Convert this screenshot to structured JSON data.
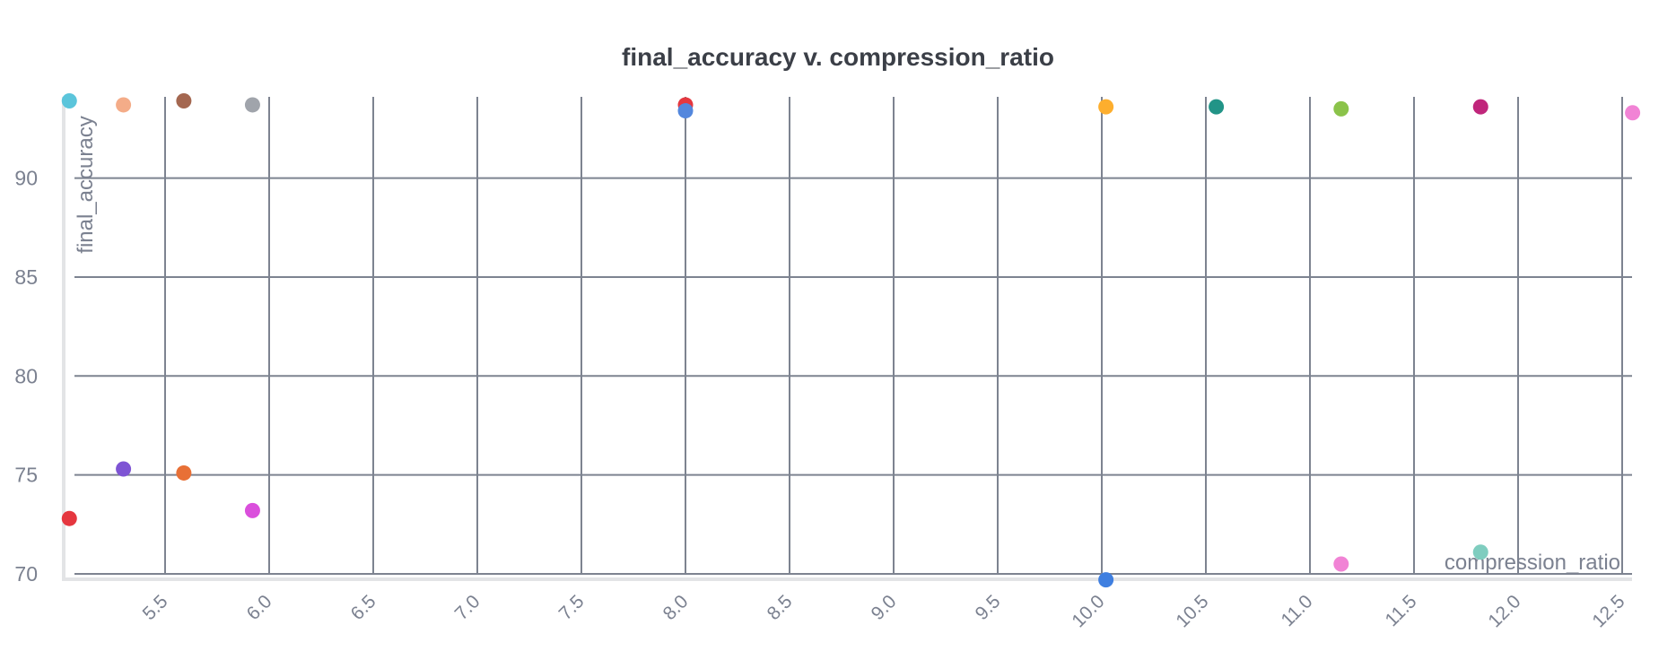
{
  "chart_data": {
    "type": "scatter",
    "title": "final_accuracy v. compression_ratio",
    "xlabel": "compression_ratio",
    "ylabel": "final_accuracy",
    "xlim": [
      5.04,
      12.55
    ],
    "ylim": [
      69.7,
      94.2
    ],
    "x_ticks": [
      "5.5",
      "6.0",
      "6.5",
      "7.0",
      "7.5",
      "8.0",
      "8.5",
      "9.0",
      "9.5",
      "10.0",
      "10.5",
      "11.0",
      "11.5",
      "12.0",
      "12.5"
    ],
    "y_ticks": [
      "70",
      "75",
      "80",
      "85",
      "90"
    ],
    "grid": true,
    "legend": "none",
    "points": [
      {
        "x": 5.04,
        "y": 93.9,
        "color": "#5bc5db"
      },
      {
        "x": 5.3,
        "y": 93.7,
        "color": "#f4ac88"
      },
      {
        "x": 5.59,
        "y": 93.9,
        "color": "#a46750"
      },
      {
        "x": 5.92,
        "y": 93.7,
        "color": "#a0a4ab"
      },
      {
        "x": 8.0,
        "y": 93.7,
        "color": "#e5373f"
      },
      {
        "x": 8.0,
        "y": 93.4,
        "color": "#5387dd"
      },
      {
        "x": 10.02,
        "y": 93.6,
        "color": "#fdae2e"
      },
      {
        "x": 10.55,
        "y": 93.6,
        "color": "#229487"
      },
      {
        "x": 11.15,
        "y": 93.5,
        "color": "#8bc34a"
      },
      {
        "x": 11.82,
        "y": 93.6,
        "color": "#c0267b"
      },
      {
        "x": 12.55,
        "y": 93.3,
        "color": "#f183d5"
      },
      {
        "x": 5.3,
        "y": 75.3,
        "color": "#7e54d4"
      },
      {
        "x": 5.59,
        "y": 75.1,
        "color": "#e87036"
      },
      {
        "x": 5.92,
        "y": 73.2,
        "color": "#da4fdc"
      },
      {
        "x": 5.04,
        "y": 72.8,
        "color": "#e5373f"
      },
      {
        "x": 10.02,
        "y": 69.7,
        "color": "#3f7fe0"
      },
      {
        "x": 11.15,
        "y": 70.5,
        "color": "#f183d5"
      },
      {
        "x": 11.82,
        "y": 71.1,
        "color": "#7fcdbf"
      }
    ],
    "colors": {
      "grid": "#7d8390",
      "axis": "#e3e4e6",
      "tick_text": "#7b8190",
      "title": "#3b3f47"
    }
  }
}
